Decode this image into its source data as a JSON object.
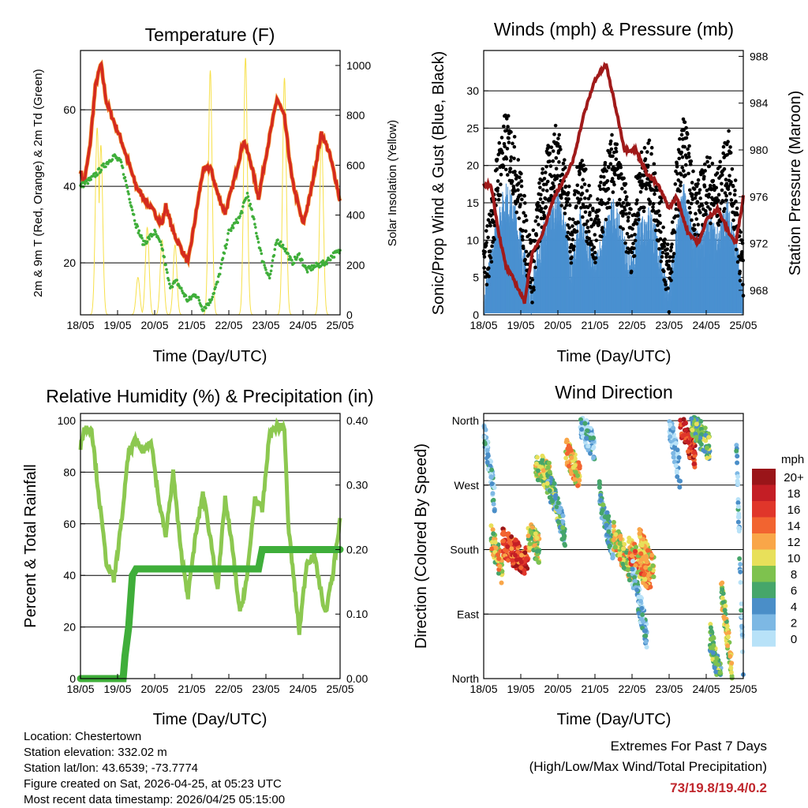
{
  "x_ticks": [
    "18/05",
    "19/05",
    "20/05",
    "21/05",
    "22/05",
    "23/05",
    "24/05",
    "25/05"
  ],
  "info": {
    "location": "Location: Chestertown",
    "elevation": "Station elevation: 332.02 m",
    "latlon": "Station lat/lon: 43.6539; -73.7774",
    "created": "Figure created on Sat, 2026-04-25, at 05:23 UTC",
    "recent": "Most recent data timestamp: 2026/04/25 05:15:00"
  },
  "extremes": {
    "title": "Extremes For Past 7 Days",
    "subtitle": "(High/Low/Max Wind/Total Precipitation)",
    "values": "73/19.8/19.4/0.2",
    "color": "#c0272d"
  },
  "chart_data": [
    {
      "type": "line",
      "title": "Temperature (F)",
      "xlabel": "Time (Day/UTC)",
      "ylabel": "2m & 9m T (Red, Orange) & 2m Td (Green)",
      "y2label": "Solar Insolation (Yellow)",
      "ylim": [
        6.4,
        75.5
      ],
      "y2lim": [
        0,
        1060
      ],
      "xlim": [
        0,
        7
      ],
      "yticks": [
        "20",
        "40",
        "60"
      ],
      "yticks_v": [
        20,
        40,
        60
      ],
      "y2ticks": [
        "0",
        "200",
        "400",
        "600",
        "800",
        "1000"
      ],
      "y2ticks_v": [
        0,
        200,
        400,
        600,
        800,
        1000
      ],
      "grid": true,
      "series": [
        {
          "name": "2m T",
          "color": "#d42a20",
          "points": [
            [
              0,
              44
            ],
            [
              0.1,
              41
            ],
            [
              0.25,
              50
            ],
            [
              0.4,
              66
            ],
            [
              0.55,
              72
            ],
            [
              0.7,
              62
            ],
            [
              0.9,
              57
            ],
            [
              1.1,
              52
            ],
            [
              1.3,
              46
            ],
            [
              1.5,
              40
            ],
            [
              1.7,
              37
            ],
            [
              2,
              33
            ],
            [
              2.2,
              30
            ],
            [
              2.3,
              35
            ],
            [
              2.5,
              28
            ],
            [
              2.7,
              24
            ],
            [
              2.9,
              20
            ],
            [
              3.1,
              32
            ],
            [
              3.3,
              44
            ],
            [
              3.5,
              45
            ],
            [
              3.7,
              38
            ],
            [
              3.9,
              33
            ],
            [
              4.1,
              40
            ],
            [
              4.4,
              52
            ],
            [
              4.6,
              46
            ],
            [
              4.8,
              37
            ],
            [
              5.0,
              48
            ],
            [
              5.3,
              63
            ],
            [
              5.5,
              58
            ],
            [
              5.7,
              42
            ],
            [
              6.0,
              30
            ],
            [
              6.2,
              38
            ],
            [
              6.5,
              54
            ],
            [
              6.7,
              49
            ],
            [
              6.9,
              41
            ],
            [
              7,
              36
            ]
          ]
        },
        {
          "name": "2m Td",
          "color": "#3fae3a",
          "points": [
            [
              0,
              40
            ],
            [
              0.3,
              42
            ],
            [
              0.6,
              45
            ],
            [
              0.9,
              48
            ],
            [
              1.1,
              46
            ],
            [
              1.3,
              38
            ],
            [
              1.5,
              30
            ],
            [
              1.7,
              25
            ],
            [
              2.0,
              28
            ],
            [
              2.2,
              24
            ],
            [
              2.4,
              14
            ],
            [
              2.6,
              15
            ],
            [
              2.9,
              10
            ],
            [
              3.1,
              12
            ],
            [
              3.3,
              8
            ],
            [
              3.5,
              10
            ],
            [
              3.7,
              15
            ],
            [
              4.0,
              28
            ],
            [
              4.3,
              32
            ],
            [
              4.5,
              38
            ],
            [
              4.7,
              30
            ],
            [
              4.9,
              21
            ],
            [
              5.1,
              16
            ],
            [
              5.3,
              26
            ],
            [
              5.5,
              24
            ],
            [
              5.7,
              20
            ],
            [
              5.9,
              22
            ],
            [
              6.1,
              18
            ],
            [
              6.3,
              19
            ],
            [
              6.6,
              20
            ],
            [
              6.8,
              22
            ],
            [
              7,
              23
            ]
          ]
        },
        {
          "name": "Solar",
          "color": "#f7e04a",
          "peaks": [
            [
              0.45,
              750
            ],
            [
              0.55,
              680
            ],
            [
              1.55,
              150
            ],
            [
              1.8,
              350
            ],
            [
              2.2,
              300
            ],
            [
              2.55,
              280
            ],
            [
              3.5,
              980
            ],
            [
              4.45,
              1030
            ],
            [
              5.5,
              950
            ],
            [
              6.5,
              720
            ]
          ]
        }
      ]
    },
    {
      "type": "scatter",
      "title": "Winds (mph) & Pressure (mb)",
      "xlabel": "Time (Day/UTC)",
      "ylabel": "Sonic/Prop Wind & Gust (Blue, Black)",
      "y2label": "Station Pressure (Maroon)",
      "ylim": [
        0,
        35.4
      ],
      "y2lim": [
        965.9,
        988.5
      ],
      "xlim": [
        0,
        7
      ],
      "yticks": [
        "0",
        "5",
        "10",
        "15",
        "20",
        "25",
        "30"
      ],
      "yticks_v": [
        0,
        5,
        10,
        15,
        20,
        25,
        30
      ],
      "y2ticks": [
        "968",
        "972",
        "976",
        "980",
        "984",
        "988"
      ],
      "y2ticks_v": [
        968,
        972,
        976,
        980,
        984,
        988
      ],
      "grid": true,
      "series": [
        {
          "name": "Wind",
          "color": "#4a90d0",
          "points": [
            [
              0,
              2
            ],
            [
              0.2,
              6
            ],
            [
              0.4,
              12
            ],
            [
              0.6,
              15
            ],
            [
              0.8,
              13
            ],
            [
              1,
              9
            ],
            [
              1.2,
              4
            ],
            [
              1.3,
              2
            ],
            [
              1.5,
              8
            ],
            [
              1.7,
              11
            ],
            [
              2,
              14
            ],
            [
              2.2,
              10
            ],
            [
              2.4,
              5
            ],
            [
              2.6,
              12
            ],
            [
              2.8,
              8
            ],
            [
              3,
              5
            ],
            [
              3.2,
              9
            ],
            [
              3.5,
              13
            ],
            [
              3.8,
              8
            ],
            [
              4,
              5
            ],
            [
              4.2,
              11
            ],
            [
              4.5,
              12
            ],
            [
              4.8,
              6
            ],
            [
              5,
              1
            ],
            [
              5.2,
              10
            ],
            [
              5.4,
              15
            ],
            [
              5.6,
              10
            ],
            [
              5.8,
              8
            ],
            [
              6,
              11
            ],
            [
              6.3,
              9
            ],
            [
              6.6,
              13
            ],
            [
              6.9,
              5
            ],
            [
              7,
              1
            ]
          ]
        },
        {
          "name": "Gust",
          "color": "#000000"
        },
        {
          "name": "Pressure",
          "color": "#a01a1a",
          "points": [
            [
              0,
              977
            ],
            [
              0.2,
              977
            ],
            [
              0.4,
              973
            ],
            [
              0.6,
              970
            ],
            [
              0.8,
              969
            ],
            [
              1.1,
              967
            ],
            [
              1.3,
              971
            ],
            [
              1.6,
              973
            ],
            [
              1.9,
              976
            ],
            [
              2.1,
              977
            ],
            [
              2.4,
              979
            ],
            [
              2.7,
              983
            ],
            [
              3.0,
              986
            ],
            [
              3.3,
              987.3
            ],
            [
              3.6,
              983
            ],
            [
              3.8,
              980
            ],
            [
              4.1,
              980
            ],
            [
              4.4,
              978
            ],
            [
              4.7,
              977
            ],
            [
              5.0,
              975
            ],
            [
              5.2,
              976
            ],
            [
              5.5,
              973
            ],
            [
              5.8,
              972
            ],
            [
              6.0,
              974
            ],
            [
              6.3,
              975
            ],
            [
              6.6,
              973
            ],
            [
              6.8,
              972
            ],
            [
              7,
              976
            ]
          ]
        }
      ]
    },
    {
      "type": "line",
      "title": "Relative Humidity (%) & Precipitation (in)",
      "xlabel": "Time (Day/UTC)",
      "ylabel": "Percent & Total Rainfall",
      "ylim": [
        0,
        102.75
      ],
      "y2lim": [
        0,
        0.411
      ],
      "xlim": [
        0,
        7
      ],
      "yticks": [
        "0",
        "20",
        "40",
        "60",
        "80",
        "100"
      ],
      "yticks_v": [
        0,
        20,
        40,
        60,
        80,
        100
      ],
      "y2ticks": [
        "0.00",
        "0.10",
        "0.20",
        "0.30",
        "0.40"
      ],
      "y2ticks_v": [
        0,
        0.1,
        0.2,
        0.3,
        0.4
      ],
      "grid": true,
      "series": [
        {
          "name": "RH",
          "color": "#8cc850",
          "points": [
            [
              0,
              90
            ],
            [
              0.1,
              97
            ],
            [
              0.3,
              97
            ],
            [
              0.5,
              70
            ],
            [
              0.7,
              45
            ],
            [
              0.9,
              38
            ],
            [
              1.1,
              60
            ],
            [
              1.3,
              88
            ],
            [
              1.5,
              92
            ],
            [
              1.7,
              88
            ],
            [
              1.9,
              93
            ],
            [
              2.1,
              70
            ],
            [
              2.3,
              55
            ],
            [
              2.5,
              80
            ],
            [
              2.7,
              50
            ],
            [
              2.9,
              32
            ],
            [
              3.1,
              55
            ],
            [
              3.3,
              72
            ],
            [
              3.5,
              55
            ],
            [
              3.7,
              35
            ],
            [
              3.9,
              70
            ],
            [
              4.1,
              50
            ],
            [
              4.3,
              25
            ],
            [
              4.5,
              40
            ],
            [
              4.7,
              70
            ],
            [
              4.9,
              65
            ],
            [
              5.1,
              95
            ],
            [
              5.3,
              98
            ],
            [
              5.5,
              97
            ],
            [
              5.6,
              60
            ],
            [
              5.9,
              18
            ],
            [
              6.1,
              45
            ],
            [
              6.3,
              48
            ],
            [
              6.6,
              25
            ],
            [
              6.8,
              40
            ],
            [
              7,
              62
            ]
          ]
        },
        {
          "name": "Precip",
          "color": "#3fae3a",
          "points": [
            [
              0,
              0
            ],
            [
              1.15,
              0
            ],
            [
              1.2,
              0.035
            ],
            [
              1.3,
              0.08
            ],
            [
              1.4,
              0.16
            ],
            [
              1.5,
              0.17
            ],
            [
              4.8,
              0.17
            ],
            [
              4.9,
              0.2
            ],
            [
              7,
              0.2
            ]
          ]
        }
      ]
    },
    {
      "type": "scatter",
      "title": "Wind Direction",
      "xlabel": "Time (Day/UTC)",
      "ylabel": "Direction (Colored By Speed)",
      "ylim": [
        0,
        370
      ],
      "xlim": [
        0,
        7
      ],
      "yticks": [
        "North",
        "East",
        "South",
        "West",
        "North"
      ],
      "yticks_v": [
        0,
        90,
        180,
        270,
        360
      ],
      "grid": true,
      "legend": {
        "title": "mph",
        "labels": [
          "20+",
          "18",
          "16",
          "14",
          "12",
          "10",
          "8",
          "6",
          "4",
          "2",
          "0"
        ],
        "colors": [
          "#9a1519",
          "#c41e25",
          "#e0362a",
          "#f26430",
          "#f9a648",
          "#e8e05a",
          "#7ec24e",
          "#46a66a",
          "#4a8ec8",
          "#7db8e4",
          "#b8e2f8"
        ],
        "placement": "right"
      },
      "clusters": [
        [
          0,
          0.3,
          350,
          250,
          2
        ],
        [
          0.2,
          0.5,
          200,
          150,
          10
        ],
        [
          0.5,
          1.2,
          190,
          160,
          16
        ],
        [
          1.2,
          1.5,
          200,
          180,
          9
        ],
        [
          1.4,
          1.8,
          300,
          280,
          9
        ],
        [
          1.7,
          2.0,
          280,
          240,
          6
        ],
        [
          2.2,
          2.6,
          320,
          280,
          11
        ],
        [
          2.0,
          2.2,
          230,
          200,
          5
        ],
        [
          2.6,
          3.0,
          360,
          320,
          2
        ],
        [
          3.1,
          3.5,
          260,
          180,
          4
        ],
        [
          3.5,
          4.0,
          200,
          150,
          10
        ],
        [
          3.9,
          4.5,
          180,
          140,
          12
        ],
        [
          4.2,
          4.6,
          190,
          150,
          11
        ],
        [
          4.0,
          4.4,
          150,
          60,
          3
        ],
        [
          5.0,
          5.3,
          360,
          280,
          1
        ],
        [
          5.3,
          5.7,
          360,
          310,
          17
        ],
        [
          5.6,
          6.1,
          360,
          320,
          7
        ],
        [
          6.1,
          6.4,
          60,
          0,
          6
        ],
        [
          6.4,
          6.7,
          130,
          10,
          9
        ],
        [
          6.8,
          7.0,
          360,
          0,
          2
        ]
      ]
    }
  ]
}
